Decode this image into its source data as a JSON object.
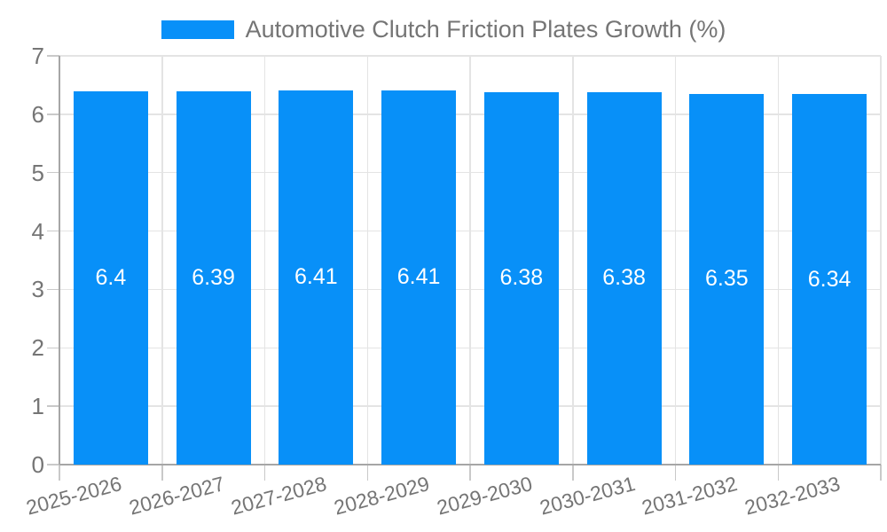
{
  "chart_data": {
    "type": "bar",
    "title": "Automotive Clutch Friction Plates Growth (%)",
    "categories": [
      "2025-2026",
      "2026-2027",
      "2027-2028",
      "2028-2029",
      "2029-2030",
      "2030-2031",
      "2031-2032",
      "2032-2033"
    ],
    "values": [
      6.4,
      6.39,
      6.41,
      6.41,
      6.38,
      6.38,
      6.35,
      6.34
    ],
    "value_labels": [
      "6.4",
      "6.39",
      "6.41",
      "6.41",
      "6.38",
      "6.38",
      "6.35",
      "6.34"
    ],
    "ylim": [
      0,
      7
    ],
    "yticks": [
      "0",
      "1",
      "2",
      "3",
      "4",
      "5",
      "6",
      "7"
    ],
    "grid": true,
    "legend_position": "top",
    "colors": {
      "bar": "#0890f8",
      "text": "#757575",
      "grid_line": "#e4e4e4",
      "axis_line": "#a6a6a6",
      "tick_mark": "#c9c9c9",
      "value_label": "#ffffff",
      "background": "#ffffff"
    }
  }
}
